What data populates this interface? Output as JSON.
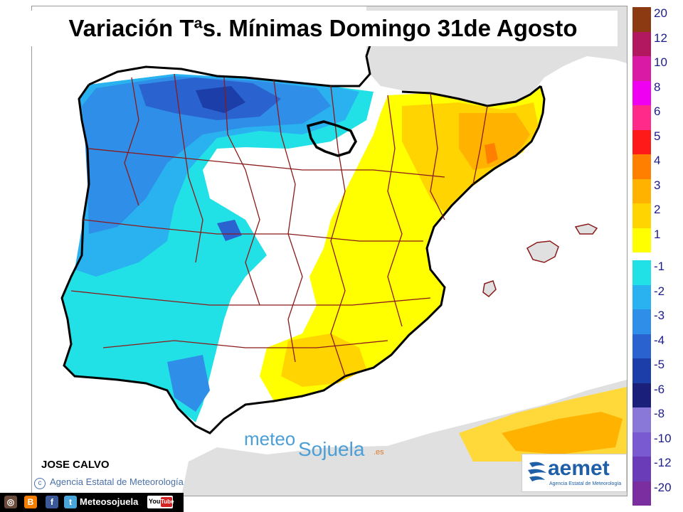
{
  "title": "Variación Tªs. Mínimas Domingo 31de Agosto",
  "author": "JOSE CALVO",
  "credit": "Agencia Estatal de Meteorología",
  "credit_symbol": "c",
  "watermark": {
    "part1": "meteo",
    "part2": "Sojuela",
    "part3": ".es"
  },
  "aemet": {
    "name": "aemet",
    "subtitle": "Agencia Estatal de Meteorología"
  },
  "social": {
    "handle": "Meteosojuela",
    "youtube_you": "You",
    "youtube_tube": "Tube",
    "icons": [
      "instagram-icon",
      "blogger-icon",
      "facebook-icon",
      "twitter-icon"
    ]
  },
  "legend": {
    "positive": [
      {
        "label": "20",
        "color": "#8b3a12"
      },
      {
        "label": "12",
        "color": "#b2185f"
      },
      {
        "label": "10",
        "color": "#d81aa5"
      },
      {
        "label": "8",
        "color": "#f000f0"
      },
      {
        "label": "6",
        "color": "#ff2a8a"
      },
      {
        "label": "5",
        "color": "#ff1a1a"
      },
      {
        "label": "4",
        "color": "#ff7f00"
      },
      {
        "label": "3",
        "color": "#ffb300"
      },
      {
        "label": "2",
        "color": "#ffd400"
      },
      {
        "label": "1",
        "color": "#ffff00"
      }
    ],
    "negative": [
      {
        "label": "-1",
        "color": "#22e1e6"
      },
      {
        "label": "-2",
        "color": "#2ab1f0"
      },
      {
        "label": "-3",
        "color": "#2e8ee8"
      },
      {
        "label": "-4",
        "color": "#2a62cf"
      },
      {
        "label": "-5",
        "color": "#1c3ea8"
      },
      {
        "label": "-6",
        "color": "#1a1f7a"
      },
      {
        "label": "-8",
        "color": "#8a78d8"
      },
      {
        "label": "-10",
        "color": "#7a5ad0"
      },
      {
        "label": "-12",
        "color": "#6a3cb8"
      },
      {
        "label": "-20",
        "color": "#7a2ea0"
      }
    ]
  },
  "map_colors": {
    "sea": "#ffffff",
    "land_outside": "#e0e0e0",
    "coast": "#000000",
    "borders": "#8b1a1a",
    "highlight_region": "#000000"
  }
}
